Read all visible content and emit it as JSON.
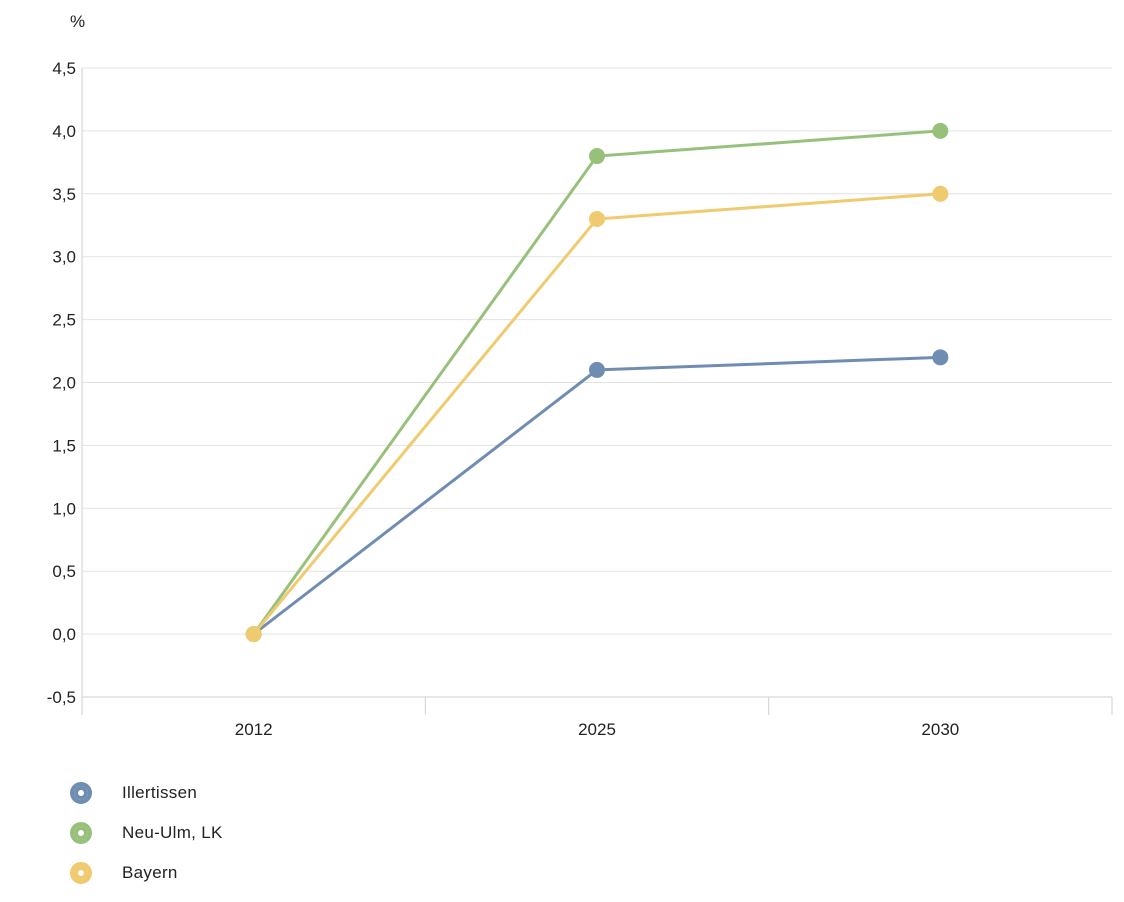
{
  "chart_data": {
    "type": "line",
    "unit_label": "%",
    "categories": [
      "2012",
      "2025",
      "2030"
    ],
    "y_ticks": [
      "4,5",
      "4,0",
      "3,5",
      "3,0",
      "2,5",
      "2,0",
      "1,5",
      "1,0",
      "0,5",
      "0,0",
      "-0,5"
    ],
    "ylim": [
      -0.5,
      4.5
    ],
    "grid": true,
    "legend_position": "bottom-left",
    "series": [
      {
        "name": "Illertissen",
        "color": "#6f8db3",
        "values": [
          0.0,
          2.1,
          2.2
        ]
      },
      {
        "name": "Neu-Ulm, LK",
        "color": "#97c17b",
        "values": [
          0.0,
          3.8,
          4.0
        ]
      },
      {
        "name": "Bayern",
        "color": "#f0ca6e",
        "values": [
          0.0,
          3.3,
          3.5
        ]
      }
    ]
  }
}
